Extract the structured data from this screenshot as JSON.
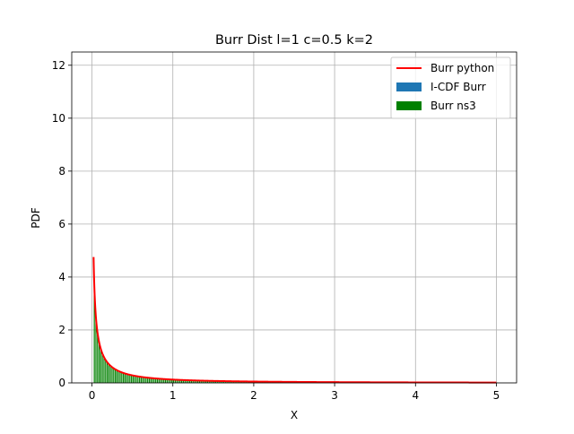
{
  "chart_data": {
    "type": "bar",
    "title": "Burr Dist l=1 c=0.5 k=2",
    "xlabel": "X",
    "ylabel": "PDF",
    "xlim": [
      -0.25,
      5.25
    ],
    "ylim": [
      0,
      12.5
    ],
    "xticks": [
      0,
      1,
      2,
      3,
      4,
      5
    ],
    "yticks": [
      0,
      2,
      4,
      6,
      8,
      10,
      12
    ],
    "grid": true,
    "legend_position": "top-right",
    "distribution": {
      "l": 1,
      "c": 0.5,
      "k": 2
    },
    "series": [
      {
        "name": "Burr python",
        "type": "line",
        "color": "#ff0000",
        "x_range": [
          0.02,
          5.0
        ],
        "peak_value": 4.8
      },
      {
        "name": "I-CDF Burr",
        "type": "bar",
        "color": "#1f77b4"
      },
      {
        "name": "Burr ns3",
        "type": "bar",
        "color": "#008000",
        "x_range": [
          0.02,
          5.0
        ],
        "bin_width": 0.02
      }
    ]
  }
}
